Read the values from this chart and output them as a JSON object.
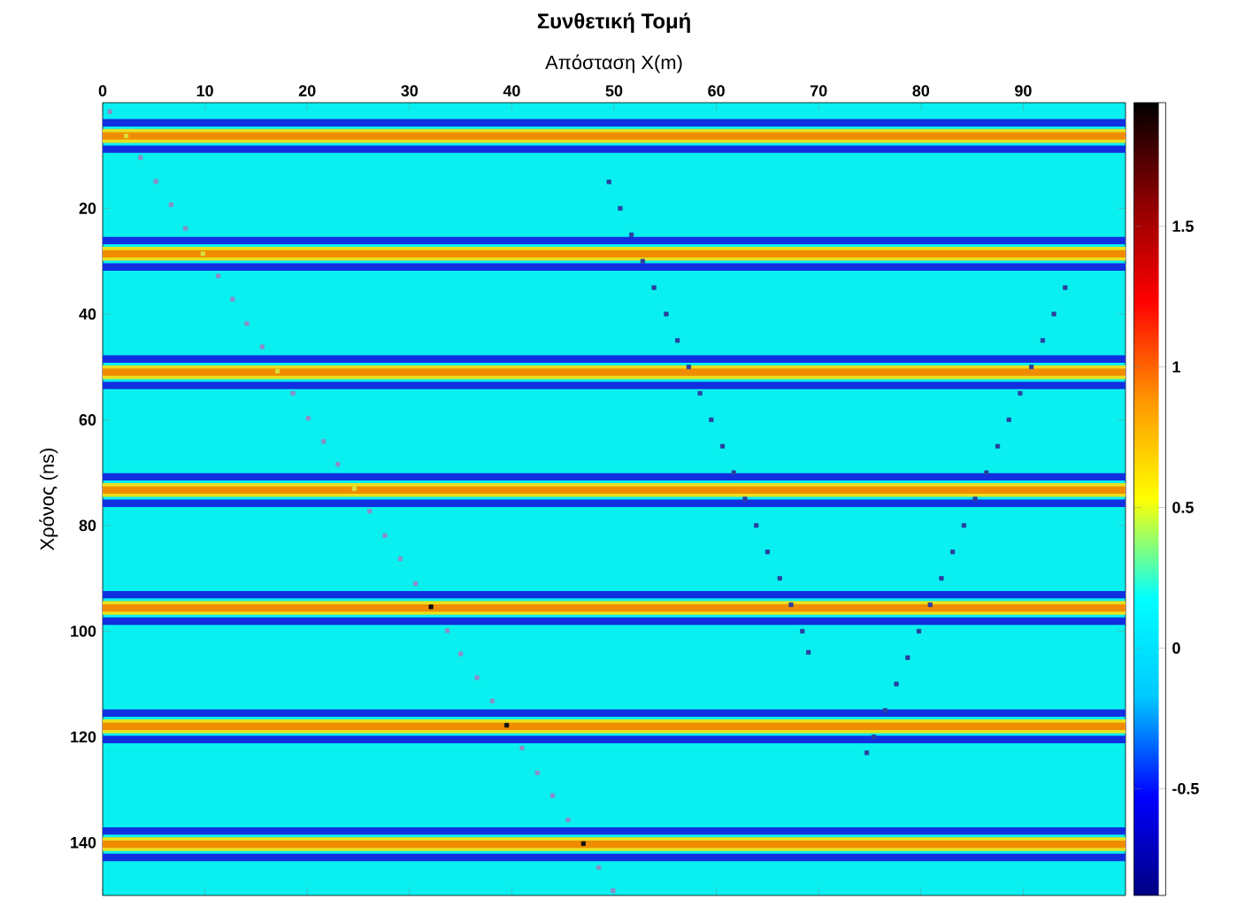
{
  "chart_data": {
    "type": "scatter",
    "title": "Συνθετική Τομή",
    "xlabel": "Απόσταση X(m)",
    "ylabel": "Χρόνος (ns)",
    "xlim": [
      0,
      100
    ],
    "xticks": [
      0,
      10,
      20,
      30,
      40,
      50,
      60,
      70,
      80,
      90
    ],
    "ylim": [
      150,
      0
    ],
    "yticks": [
      20,
      40,
      60,
      80,
      100,
      120,
      140
    ],
    "clim": [
      -0.88,
      1.94
    ],
    "cticks": [
      -0.5,
      0,
      0.5,
      1,
      1.5
    ],
    "marker": "square",
    "bands": [
      {
        "axis": "y",
        "from": 3.1,
        "to": 4.5,
        "color": "#1030e0"
      },
      {
        "axis": "y",
        "from": 5.0,
        "to": 7.6,
        "color": "#e8e020"
      },
      {
        "axis": "y",
        "from": 5.6,
        "to": 7.0,
        "color": "#f08c00"
      },
      {
        "axis": "y",
        "from": 8.1,
        "to": 9.5,
        "color": "#1030e0"
      },
      {
        "axis": "y",
        "from": 25.4,
        "to": 26.8,
        "color": "#1030e0"
      },
      {
        "axis": "y",
        "from": 27.3,
        "to": 29.9,
        "color": "#e8e020"
      },
      {
        "axis": "y",
        "from": 27.9,
        "to": 29.3,
        "color": "#f08c00"
      },
      {
        "axis": "y",
        "from": 30.4,
        "to": 31.8,
        "color": "#1030e0"
      },
      {
        "axis": "y",
        "from": 47.8,
        "to": 49.2,
        "color": "#1030e0"
      },
      {
        "axis": "y",
        "from": 49.7,
        "to": 52.3,
        "color": "#e8e020"
      },
      {
        "axis": "y",
        "from": 50.3,
        "to": 51.7,
        "color": "#f08c00"
      },
      {
        "axis": "y",
        "from": 52.8,
        "to": 54.2,
        "color": "#1030e0"
      },
      {
        "axis": "y",
        "from": 70.1,
        "to": 71.5,
        "color": "#1030e0"
      },
      {
        "axis": "y",
        "from": 72.0,
        "to": 74.6,
        "color": "#e8e020"
      },
      {
        "axis": "y",
        "from": 72.6,
        "to": 74.0,
        "color": "#f08c00"
      },
      {
        "axis": "y",
        "from": 75.1,
        "to": 76.5,
        "color": "#1030e0"
      },
      {
        "axis": "y",
        "from": 92.4,
        "to": 93.8,
        "color": "#1030e0"
      },
      {
        "axis": "y",
        "from": 94.3,
        "to": 96.9,
        "color": "#e8e020"
      },
      {
        "axis": "y",
        "from": 94.9,
        "to": 96.3,
        "color": "#f08c00"
      },
      {
        "axis": "y",
        "from": 97.4,
        "to": 98.8,
        "color": "#1030e0"
      },
      {
        "axis": "y",
        "from": 114.8,
        "to": 116.2,
        "color": "#1030e0"
      },
      {
        "axis": "y",
        "from": 116.7,
        "to": 119.3,
        "color": "#e8e020"
      },
      {
        "axis": "y",
        "from": 117.3,
        "to": 118.7,
        "color": "#f08c00"
      },
      {
        "axis": "y",
        "from": 119.8,
        "to": 121.2,
        "color": "#1030e0"
      },
      {
        "axis": "y",
        "from": 137.1,
        "to": 138.5,
        "color": "#1030e0"
      },
      {
        "axis": "y",
        "from": 139.0,
        "to": 141.6,
        "color": "#e8e020"
      },
      {
        "axis": "y",
        "from": 139.6,
        "to": 141.0,
        "color": "#f08c00"
      },
      {
        "axis": "y",
        "from": 142.1,
        "to": 143.5,
        "color": "#1030e0"
      }
    ],
    "series": [
      {
        "x": [
          0.7,
          2.3,
          3.7,
          5.2,
          6.7,
          8.1,
          9.8,
          11.3,
          12.7,
          14.1,
          15.6,
          17.1,
          18.6,
          20.1,
          21.6,
          23.0,
          24.6,
          26.1,
          27.6,
          29.1,
          30.6,
          32.1,
          33.7,
          35.0,
          36.6,
          38.1,
          39.5,
          41.0,
          42.5,
          44.0,
          45.5,
          47.0,
          48.5,
          49.9
        ],
        "values": [
          1.7,
          6.3,
          10.4,
          14.9,
          19.3,
          23.8,
          28.6,
          32.8,
          37.2,
          41.8,
          46.2,
          50.8,
          55.0,
          59.7,
          64.1,
          68.4,
          73.0,
          77.3,
          81.9,
          86.3,
          91.0,
          95.4,
          99.9,
          104.3,
          108.8,
          113.2,
          117.8,
          122.1,
          126.8,
          131.1,
          135.7,
          140.2,
          144.7,
          149.1
        ],
        "colors": [
          "#8c8cc8",
          "#d8e040",
          "#8c8cc8",
          "#8c8cc8",
          "#8c8cc8",
          "#8c8cc8",
          "#d8e040",
          "#8c8cc8",
          "#8c8cc8",
          "#8c8cc8",
          "#8c8cc8",
          "#d8e040",
          "#8c8cc8",
          "#8c8cc8",
          "#8c8cc8",
          "#8c8cc8",
          "#d8e040",
          "#8c8cc8",
          "#8c8cc8",
          "#8c8cc8",
          "#8c8cc8",
          "#101010",
          "#8c8cc8",
          "#8c8cc8",
          "#8c8cc8",
          "#8c8cc8",
          "#101010",
          "#8c8cc8",
          "#8c8cc8",
          "#8c8cc8",
          "#8c8cc8",
          "#101010",
          "#8c8cc8",
          "#8c8cc8"
        ]
      },
      {
        "x": [
          49.5,
          50.6,
          51.7,
          52.8,
          53.9,
          55.1,
          56.2,
          57.3,
          58.4,
          59.5,
          60.6,
          61.7,
          62.8,
          63.9,
          65.0,
          66.2,
          67.3,
          68.4,
          69.0
        ],
        "values": [
          15,
          20,
          25,
          30,
          35,
          40,
          45,
          50,
          55,
          60,
          65,
          70,
          75,
          80,
          85,
          90,
          95,
          100,
          104
        ],
        "color": "#2a40a0"
      },
      {
        "x": [
          94.1,
          93.0,
          91.9,
          90.8,
          89.7,
          88.6,
          87.5,
          86.4,
          85.3,
          84.2,
          83.1,
          82.0,
          80.9,
          79.8,
          78.7,
          77.6,
          76.5,
          75.4,
          74.7
        ],
        "values": [
          35,
          40,
          45,
          50,
          55,
          60,
          65,
          70,
          75,
          80,
          85,
          90,
          95,
          100,
          105,
          110,
          115,
          120,
          123
        ],
        "color": "#2a40a0"
      }
    ]
  }
}
